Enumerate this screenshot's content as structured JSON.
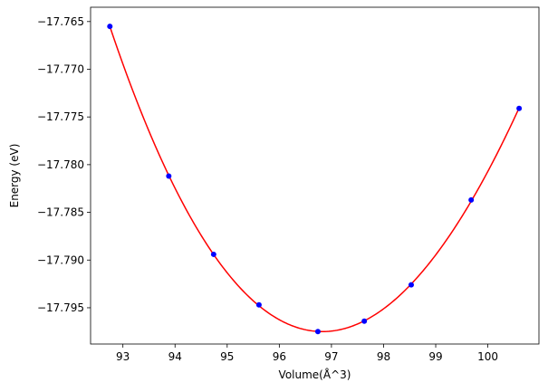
{
  "chart_data": {
    "type": "line",
    "title": "",
    "xlabel": "Volume(Å^3)",
    "ylabel": "Energy (eV)",
    "xlim": [
      92.38,
      100.98
    ],
    "ylim": [
      -17.7988,
      -17.7635
    ],
    "grid": false,
    "legend": "none",
    "x_ticks": [
      93,
      94,
      95,
      96,
      97,
      98,
      99,
      100
    ],
    "x_tick_labels": [
      "93",
      "94",
      "95",
      "96",
      "97",
      "98",
      "99",
      "100"
    ],
    "y_ticks": [
      -17.795,
      -17.79,
      -17.785,
      -17.78,
      -17.775,
      -17.77,
      -17.765
    ],
    "y_tick_labels": [
      "−17.795",
      "−17.790",
      "−17.785",
      "−17.780",
      "−17.775",
      "−17.770",
      "−17.765"
    ],
    "series": [
      {
        "kind": "scatter",
        "color": "#0000ff",
        "x": [
          92.75,
          93.88,
          94.74,
          95.61,
          96.74,
          97.63,
          98.53,
          99.68,
          100.6
        ],
        "y": [
          -17.7655,
          -17.7812,
          -17.7894,
          -17.7947,
          -17.7975,
          -17.7964,
          -17.7926,
          -17.7837,
          -17.7741
        ]
      },
      {
        "kind": "fit-curve",
        "color": "#ff0000",
        "fit": "cubic",
        "x_range": [
          92.75,
          100.6
        ]
      }
    ]
  }
}
